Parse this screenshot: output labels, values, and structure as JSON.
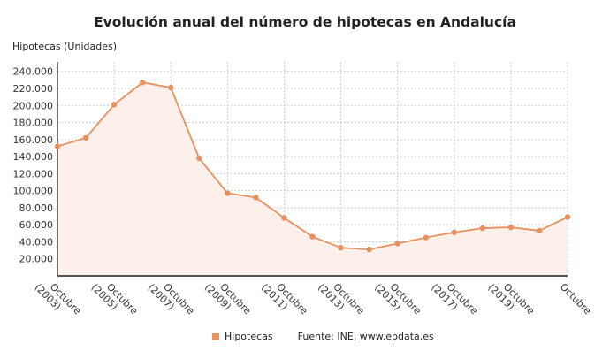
{
  "chart_data": {
    "type": "area",
    "title": "Evolución anual del número de hipotecas en Andalucía",
    "ylabel": "Hipotecas (Unidades)",
    "xlabel": "",
    "ylim": [
      0,
      250000
    ],
    "yticks": [
      20000,
      40000,
      60000,
      80000,
      100000,
      120000,
      140000,
      160000,
      180000,
      200000,
      220000,
      240000
    ],
    "ytick_labels": [
      "20.000",
      "40.000",
      "60.000",
      "80.000",
      "100.000",
      "120.000",
      "140.000",
      "160.000",
      "180.000",
      "200.000",
      "220.000",
      "240.000"
    ],
    "x": [
      2003,
      2004,
      2005,
      2006,
      2007,
      2008,
      2009,
      2010,
      2011,
      2012,
      2013,
      2014,
      2015,
      2016,
      2017,
      2018,
      2019,
      2020,
      2021
    ],
    "xtick_labels": [
      {
        "index": 0,
        "line1": "Octubre",
        "line2": "(2003)"
      },
      {
        "index": 2,
        "line1": "Octubre",
        "line2": "(2005)"
      },
      {
        "index": 4,
        "line1": "Octubre",
        "line2": "(2007)"
      },
      {
        "index": 6,
        "line1": "Octubre",
        "line2": "(2009)"
      },
      {
        "index": 8,
        "line1": "Octubre",
        "line2": "(2011)"
      },
      {
        "index": 10,
        "line1": "Octubre",
        "line2": "(2013)"
      },
      {
        "index": 12,
        "line1": "Octubre",
        "line2": "(2015)"
      },
      {
        "index": 14,
        "line1": "Octubre",
        "line2": "(2017)"
      },
      {
        "index": 16,
        "line1": "Octubre",
        "line2": "(2019)"
      },
      {
        "index": 18,
        "line1": "Octubre",
        "line2": ""
      }
    ],
    "series": [
      {
        "name": "Hipotecas",
        "color": "#e8915f",
        "values": [
          152000,
          162000,
          201000,
          227000,
          221000,
          138000,
          97000,
          92000,
          68000,
          46000,
          33000,
          31000,
          38000,
          45000,
          51000,
          56000,
          57000,
          53000,
          69000
        ]
      }
    ],
    "grid": true,
    "legend": "bottom",
    "source": "Fuente: INE, www.epdata.es"
  }
}
